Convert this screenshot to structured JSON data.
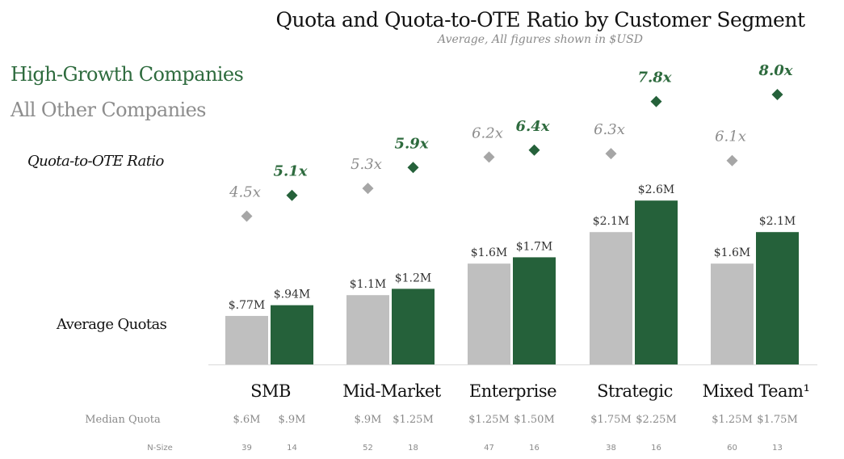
{
  "chart_data": {
    "type": "bar",
    "title": "Quota and Quota-to-OTE Ratio by Customer Segment",
    "subtitle": "Average, All figures shown in $USD",
    "legend": [
      {
        "name": "High-Growth Companies",
        "color": "#25613a"
      },
      {
        "name": "All Other Companies",
        "color": "#bfbfbf"
      }
    ],
    "ratio_axis_label": "Quota-to-OTE Ratio",
    "quota_axis_label": "Average Quotas",
    "categories": [
      "SMB",
      "Mid-Market",
      "Enterprise",
      "Strategic",
      "Mixed Team¹"
    ],
    "series": [
      {
        "name": "All Other Companies",
        "color": "#bfbfbf",
        "marker_color": "#a6a6a6",
        "label_color": "#8d8d8d",
        "quota_values": [
          0.77,
          1.1,
          1.6,
          2.1,
          1.6
        ],
        "quota_labels": [
          "$.77M",
          "$1.1M",
          "$1.6M",
          "$2.1M",
          "$1.6M"
        ],
        "ratio_values": [
          4.5,
          5.3,
          6.2,
          6.3,
          6.1
        ],
        "ratio_labels": [
          "4.5x",
          "5.3x",
          "6.2x",
          "6.3x",
          "6.1x"
        ],
        "median_quota": [
          "$.6M",
          "$.9M",
          "$1.25M",
          "$1.75M",
          "$1.25M"
        ],
        "n_size": [
          "39",
          "52",
          "47",
          "38",
          "60"
        ]
      },
      {
        "name": "High-Growth Companies",
        "color": "#25613a",
        "marker_color": "#25613a",
        "label_color": "#2e6b3e",
        "quota_values": [
          0.94,
          1.2,
          1.7,
          2.6,
          2.1
        ],
        "quota_labels": [
          "$.94M",
          "$1.2M",
          "$1.7M",
          "$2.6M",
          "$2.1M"
        ],
        "ratio_values": [
          5.1,
          5.9,
          6.4,
          7.8,
          8.0
        ],
        "ratio_labels": [
          "5.1x",
          "5.9x",
          "6.4x",
          "7.8x",
          "8.0x"
        ],
        "median_quota": [
          "$.9M",
          "$1.25M",
          "$1.50M",
          "$2.25M",
          "$1.75M"
        ],
        "n_size": [
          "14",
          "18",
          "16",
          "16",
          "13"
        ]
      }
    ],
    "row_labels": {
      "median_quota": "Median Quota",
      "n_size": "N-Size"
    }
  }
}
